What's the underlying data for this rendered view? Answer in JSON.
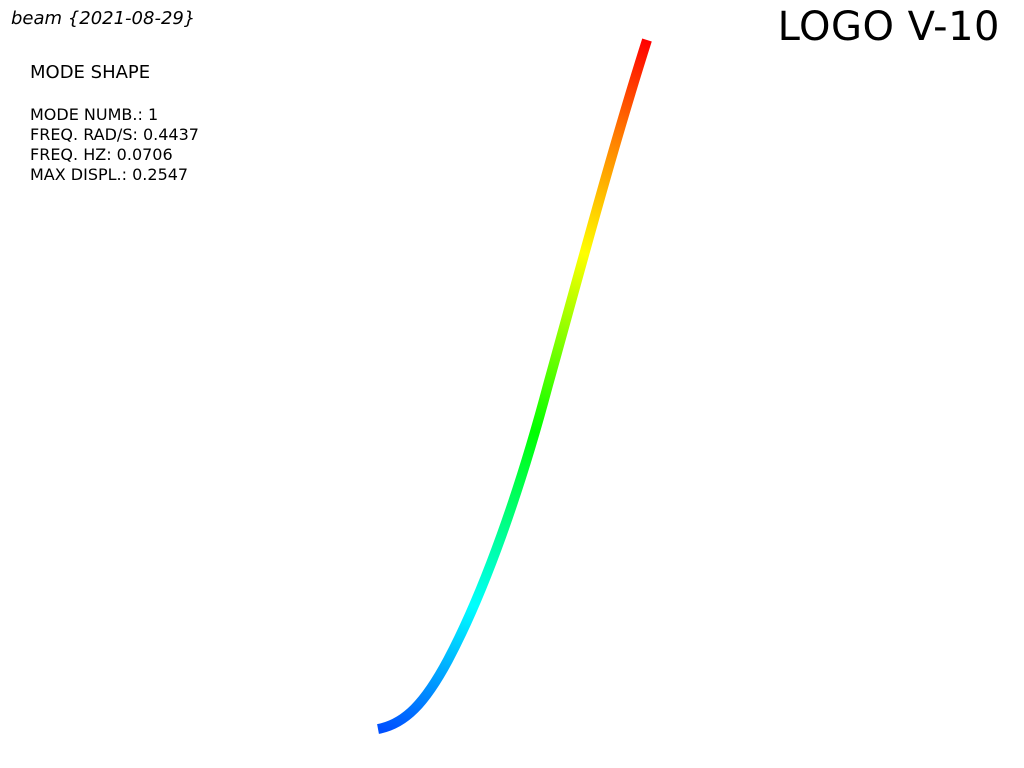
{
  "header": {
    "model_title": "beam {2021-08-29}",
    "logo_text": "LOGO V-10"
  },
  "info": {
    "heading": "MODE SHAPE",
    "rows": [
      {
        "label": "MODE NUMB.:",
        "value": "1"
      },
      {
        "label": "FREQ. RAD/S:",
        "value": "0.4437"
      },
      {
        "label": "FREQ. HZ:",
        "value": "0.0706"
      },
      {
        "label": "MAX DISPL.:",
        "value": "0.2547"
      }
    ]
  },
  "colormap": {
    "low": "#0050ff",
    "stops": [
      "#0050ff",
      "#00ffff",
      "#00ff00",
      "#ffff00",
      "#ff8000",
      "#ff0000"
    ],
    "high": "#ff0000"
  }
}
